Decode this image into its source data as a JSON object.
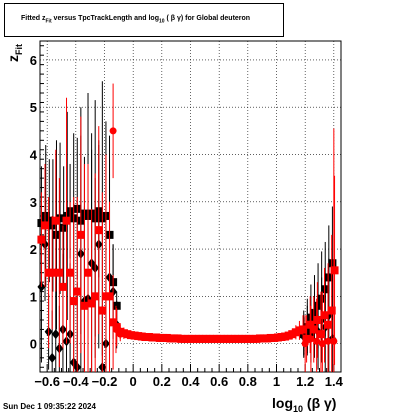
{
  "title": {
    "text_pre": "Fitted  z",
    "text_sub1": "Fit",
    "text_mid": "   versus TpcTrackLength and log",
    "text_sub2": "10",
    "text_post": " ( β γ) for Global deuteron"
  },
  "timestamp": "Sun Dec  1 09:35:22 2024",
  "colors": {
    "black_series": "#000000",
    "red_series": "#ff0000",
    "frame": "#000000"
  },
  "chart_data": {
    "type": "scatter",
    "title": "Fitted z_Fit versus TpcTrackLength and log10(β γ) for Global deuteron",
    "xlabel_main": "log",
    "xlabel_sub": "10",
    "xlabel_tail": "(β γ)",
    "ylabel_main": "z",
    "ylabel_sub": "Fit",
    "xlim": [
      -0.65,
      1.45
    ],
    "ylim": [
      -0.6,
      6.4
    ],
    "x_ticks": [
      {
        "v": -0.6,
        "label": "−0.6"
      },
      {
        "v": -0.4,
        "label": "−0.4"
      },
      {
        "v": -0.2,
        "label": "−0.2"
      },
      {
        "v": 0,
        "label": "0"
      },
      {
        "v": 0.2,
        "label": "0.2"
      },
      {
        "v": 0.4,
        "label": "0.4"
      },
      {
        "v": 0.6,
        "label": "0.6"
      },
      {
        "v": 0.8,
        "label": "0.8"
      },
      {
        "v": 1,
        "label": "1"
      },
      {
        "v": 1.2,
        "label": "1.2"
      },
      {
        "v": 1.4,
        "label": "1.4"
      }
    ],
    "y_ticks": [
      {
        "v": 0,
        "label": "0"
      },
      {
        "v": 1,
        "label": "1"
      },
      {
        "v": 2,
        "label": "2"
      },
      {
        "v": 3,
        "label": "3"
      },
      {
        "v": 4,
        "label": "4"
      },
      {
        "v": 5,
        "label": "5"
      },
      {
        "v": 6,
        "label": "6"
      }
    ],
    "grid": true,
    "series": [
      {
        "color": "#000000",
        "marker": "square",
        "points": [
          [
            -0.64,
            2.55,
            1.2
          ],
          [
            -0.61,
            2.7,
            1.5
          ],
          [
            -0.585,
            2.6,
            1.3
          ],
          [
            -0.56,
            2.5,
            1.4
          ],
          [
            -0.535,
            2.3,
            2.0
          ],
          [
            -0.51,
            2.65,
            1.6
          ],
          [
            -0.485,
            2.45,
            1.3
          ],
          [
            -0.46,
            2.7,
            2.2
          ],
          [
            -0.44,
            2.8,
            1.0
          ],
          [
            -0.415,
            2.65,
            1.8
          ],
          [
            -0.39,
            2.85,
            1.5
          ],
          [
            -0.365,
            2.6,
            2.4
          ],
          [
            -0.34,
            2.75,
            1.2
          ],
          [
            -0.315,
            2.7,
            2.6
          ],
          [
            -0.29,
            2.75,
            1.7
          ],
          [
            -0.265,
            2.65,
            2.5
          ],
          [
            -0.24,
            2.8,
            1.4
          ],
          [
            -0.215,
            2.65,
            2.9
          ],
          [
            -0.19,
            2.7,
            2.0
          ],
          [
            -0.165,
            2.3,
            1.6
          ],
          [
            -0.14,
            1.3,
            0.8
          ],
          [
            -0.115,
            0.8,
            0.3
          ],
          [
            1.19,
            0.2,
            0.5
          ],
          [
            1.215,
            0.35,
            0.6
          ],
          [
            1.24,
            0.55,
            0.7
          ],
          [
            1.265,
            0.65,
            0.8
          ],
          [
            1.29,
            0.8,
            0.9
          ],
          [
            1.315,
            0.95,
            1.0
          ],
          [
            1.34,
            1.15,
            1.0
          ],
          [
            1.365,
            1.4,
            1.1
          ],
          [
            1.39,
            1.7,
            1.2
          ]
        ]
      },
      {
        "color": "#000000",
        "marker": "diamond",
        "points": [
          [
            -0.64,
            1.2,
            1.6
          ],
          [
            -0.615,
            2.1,
            1.2
          ],
          [
            -0.59,
            0.25,
            0.8
          ],
          [
            -0.565,
            -0.3,
            1.0
          ],
          [
            -0.54,
            0.2,
            1.4
          ],
          [
            -0.515,
            -0.1,
            0.9
          ],
          [
            -0.49,
            0.3,
            1.6
          ],
          [
            -0.465,
            0.05,
            1.1
          ],
          [
            -0.44,
            0.2,
            1.5
          ],
          [
            -0.415,
            -0.4,
            1.3
          ],
          [
            -0.39,
            -0.5,
            1.8
          ],
          [
            -0.365,
            1.9,
            2.5
          ],
          [
            -0.34,
            0.9,
            2.0
          ],
          [
            -0.315,
            0.95,
            1.5
          ],
          [
            -0.29,
            1.7,
            2.4
          ],
          [
            -0.265,
            1.6,
            1.9
          ],
          [
            -0.24,
            2.1,
            2.2
          ],
          [
            -0.215,
            -0.5,
            1.3
          ],
          [
            -0.19,
            0.0,
            1.2
          ],
          [
            -0.165,
            1.4,
            3.0
          ],
          [
            -0.14,
            1.1,
            1.0
          ],
          [
            -0.115,
            0.4,
            0.5
          ],
          [
            1.19,
            0.15,
            0.4
          ],
          [
            1.215,
            0.3,
            0.5
          ],
          [
            1.24,
            0.2,
            0.6
          ],
          [
            1.265,
            0.4,
            0.7
          ],
          [
            1.29,
            0.25,
            0.8
          ],
          [
            1.315,
            0.5,
            0.9
          ],
          [
            1.34,
            0.35,
            1.0
          ],
          [
            1.365,
            0.6,
            1.2
          ],
          [
            1.39,
            0.1,
            1.4
          ]
        ]
      },
      {
        "color": "#ff0000",
        "marker": "square",
        "points": [
          [
            -0.64,
            2.2,
            1.0
          ],
          [
            -0.615,
            2.5,
            1.3
          ],
          [
            -0.59,
            1.5,
            1.6
          ],
          [
            -0.565,
            1.5,
            1.2
          ],
          [
            -0.54,
            2.6,
            1.5
          ],
          [
            -0.515,
            1.5,
            2.0
          ],
          [
            -0.49,
            1.2,
            1.3
          ],
          [
            -0.465,
            2.6,
            2.6
          ],
          [
            -0.44,
            1.5,
            1.5
          ],
          [
            -0.415,
            0.9,
            2.2
          ],
          [
            -0.39,
            1.1,
            2.0
          ],
          [
            -0.365,
            2.3,
            2.5
          ],
          [
            -0.34,
            0.8,
            3.0
          ],
          [
            -0.315,
            1.5,
            2.3
          ],
          [
            -0.29,
            0.85,
            2.0
          ],
          [
            -0.265,
            1.0,
            2.6
          ],
          [
            -0.24,
            2.4,
            2.2
          ],
          [
            -0.215,
            0.7,
            2.5
          ],
          [
            -0.19,
            1.0,
            3.0
          ],
          [
            -0.165,
            1.0,
            2.0
          ],
          [
            -0.14,
            0.45,
            1.0
          ],
          [
            -0.115,
            0.35,
            0.4
          ],
          [
            -0.09,
            0.25,
            0.15
          ],
          [
            -0.065,
            0.22,
            0.12
          ],
          [
            -0.04,
            0.2,
            0.1
          ],
          [
            -0.015,
            0.18,
            0.08
          ],
          [
            0.01,
            0.17,
            0.07
          ],
          [
            0.035,
            0.16,
            0.06
          ],
          [
            0.06,
            0.15,
            0.06
          ],
          [
            0.085,
            0.14,
            0.05
          ],
          [
            0.11,
            0.14,
            0.05
          ],
          [
            0.135,
            0.13,
            0.05
          ],
          [
            0.16,
            0.13,
            0.05
          ],
          [
            0.185,
            0.12,
            0.05
          ],
          [
            0.21,
            0.12,
            0.04
          ],
          [
            0.235,
            0.12,
            0.04
          ],
          [
            0.26,
            0.11,
            0.04
          ],
          [
            0.285,
            0.11,
            0.04
          ],
          [
            0.31,
            0.11,
            0.04
          ],
          [
            0.335,
            0.1,
            0.04
          ],
          [
            0.36,
            0.1,
            0.04
          ],
          [
            0.385,
            0.1,
            0.04
          ],
          [
            0.41,
            0.1,
            0.04
          ],
          [
            0.435,
            0.1,
            0.04
          ],
          [
            0.46,
            0.1,
            0.04
          ],
          [
            0.485,
            0.1,
            0.04
          ],
          [
            0.51,
            0.1,
            0.04
          ],
          [
            0.535,
            0.1,
            0.04
          ],
          [
            0.56,
            0.1,
            0.04
          ],
          [
            0.585,
            0.1,
            0.04
          ],
          [
            0.61,
            0.1,
            0.04
          ],
          [
            0.635,
            0.1,
            0.04
          ],
          [
            0.66,
            0.1,
            0.04
          ],
          [
            0.685,
            0.1,
            0.04
          ],
          [
            0.71,
            0.1,
            0.04
          ],
          [
            0.735,
            0.1,
            0.04
          ],
          [
            0.76,
            0.1,
            0.04
          ],
          [
            0.785,
            0.1,
            0.04
          ],
          [
            0.81,
            0.1,
            0.04
          ],
          [
            0.835,
            0.1,
            0.04
          ],
          [
            0.86,
            0.1,
            0.04
          ],
          [
            0.885,
            0.11,
            0.04
          ],
          [
            0.91,
            0.11,
            0.04
          ],
          [
            0.935,
            0.11,
            0.04
          ],
          [
            0.96,
            0.12,
            0.05
          ],
          [
            0.985,
            0.12,
            0.05
          ],
          [
            1.01,
            0.13,
            0.05
          ],
          [
            1.035,
            0.14,
            0.06
          ],
          [
            1.06,
            0.15,
            0.07
          ],
          [
            1.085,
            0.17,
            0.08
          ],
          [
            1.11,
            0.2,
            0.1
          ],
          [
            1.135,
            0.24,
            0.15
          ],
          [
            1.16,
            0.28,
            0.2
          ],
          [
            1.185,
            0.3,
            0.3
          ],
          [
            1.21,
            0.1,
            0.5
          ],
          [
            1.235,
            0.4,
            0.6
          ],
          [
            1.26,
            0.3,
            0.7
          ],
          [
            1.285,
            0.5,
            0.8
          ],
          [
            1.31,
            0.2,
            0.9
          ],
          [
            1.335,
            0.6,
            1.0
          ],
          [
            1.36,
            0.4,
            1.3
          ],
          [
            1.385,
            0.7,
            1.6
          ],
          [
            1.405,
            1.55,
            2.0
          ]
        ]
      },
      {
        "color": "#ff0000",
        "marker": "circle",
        "points": [
          [
            -0.14,
            4.5,
            1.0
          ],
          [
            -0.12,
            0.3,
            0.5
          ],
          [
            -0.09,
            0.2,
            0.15
          ],
          [
            1.2,
            0.0,
            0.6
          ],
          [
            1.24,
            0.1,
            0.7
          ],
          [
            1.28,
            0.05,
            0.9
          ],
          [
            1.32,
            0.0,
            1.1
          ],
          [
            1.36,
            0.05,
            1.5
          ],
          [
            1.4,
            0.05,
            4.5
          ]
        ]
      }
    ]
  }
}
